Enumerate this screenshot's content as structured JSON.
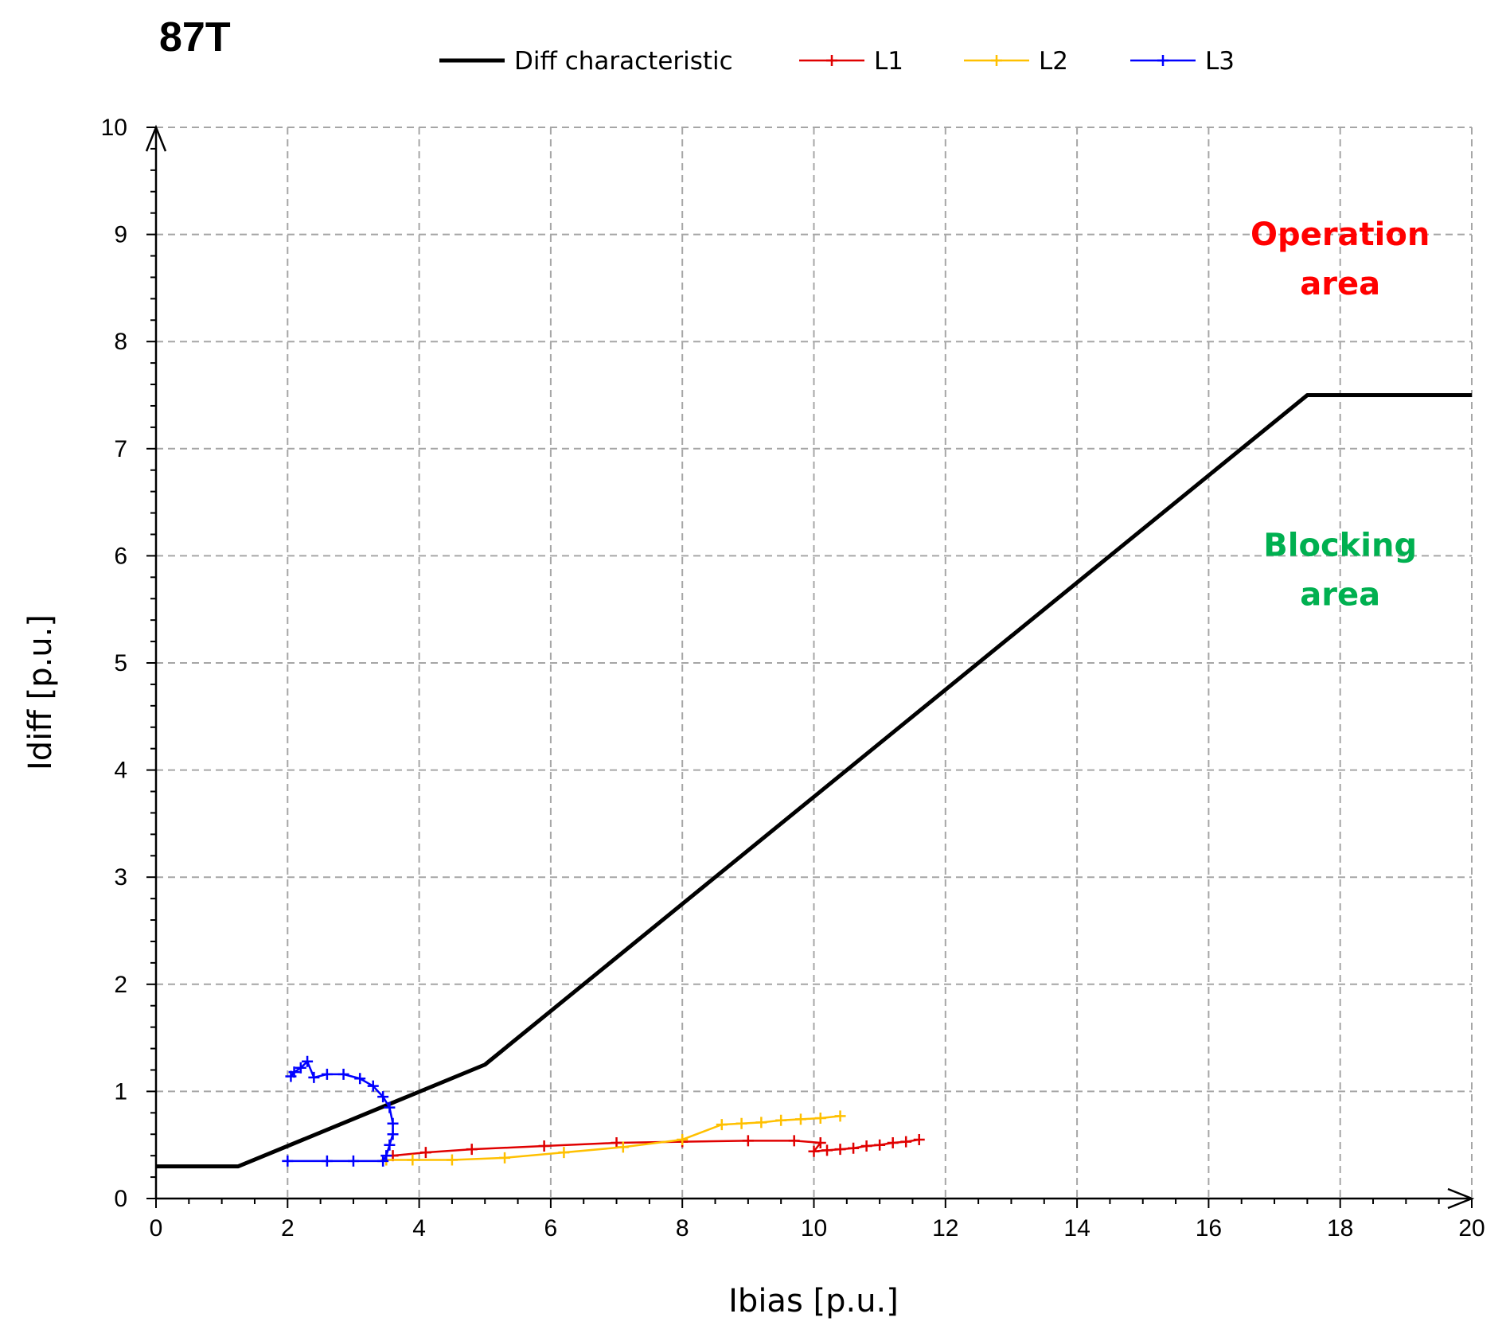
{
  "chart_data": {
    "type": "line",
    "title": "87T",
    "xlabel": "Ibias [p.u.]",
    "ylabel": "Idiff [p.u.]",
    "xlim": [
      0,
      20
    ],
    "ylim": [
      0,
      10
    ],
    "xticks": [
      0,
      2,
      4,
      6,
      8,
      10,
      12,
      14,
      16,
      18,
      20
    ],
    "yticks": [
      0,
      1,
      2,
      3,
      4,
      5,
      6,
      7,
      8,
      9,
      10
    ],
    "grid": true,
    "legend_position": "top",
    "series": [
      {
        "name": "Diff characteristic",
        "color": "#000000",
        "markers": false,
        "x": [
          0,
          1.25,
          5,
          17.5,
          20
        ],
        "y": [
          0.3,
          0.3,
          1.25,
          7.5,
          7.5
        ]
      },
      {
        "name": "L1",
        "color": "#e00000",
        "markers": true,
        "x": [
          3.6,
          4.1,
          4.8,
          5.9,
          7.0,
          8.0,
          9.0,
          9.7,
          10.1,
          10.0,
          10.2,
          10.4,
          10.6,
          10.8,
          11.0,
          11.2,
          11.4,
          11.6
        ],
        "y": [
          0.4,
          0.43,
          0.46,
          0.49,
          0.52,
          0.53,
          0.54,
          0.54,
          0.52,
          0.44,
          0.45,
          0.46,
          0.47,
          0.49,
          0.5,
          0.52,
          0.53,
          0.55
        ]
      },
      {
        "name": "L2",
        "color": "#ffc000",
        "markers": true,
        "x": [
          3.5,
          3.9,
          4.5,
          5.3,
          6.2,
          7.1,
          8.0,
          8.6,
          8.9,
          9.2,
          9.5,
          9.8,
          10.1,
          10.4
        ],
        "y": [
          0.36,
          0.36,
          0.36,
          0.38,
          0.43,
          0.48,
          0.55,
          0.69,
          0.7,
          0.71,
          0.73,
          0.74,
          0.75,
          0.77
        ]
      },
      {
        "name": "L3",
        "color": "#0000ff",
        "markers": true,
        "x": [
          2.0,
          2.6,
          3.0,
          3.45,
          3.5,
          3.55,
          3.6,
          3.6,
          3.55,
          3.45,
          3.3,
          3.1,
          2.85,
          2.6,
          2.4,
          2.3,
          2.2,
          2.1,
          2.05
        ],
        "y": [
          0.35,
          0.35,
          0.35,
          0.35,
          0.4,
          0.5,
          0.6,
          0.7,
          0.85,
          0.95,
          1.05,
          1.12,
          1.16,
          1.16,
          1.13,
          1.28,
          1.22,
          1.18,
          1.14
        ]
      }
    ],
    "annotations": [
      {
        "text": "Operation area",
        "lines": [
          "Operation",
          "area"
        ],
        "color": "#ff0000",
        "x": 18,
        "y": 8.9
      },
      {
        "text": "Blocking area",
        "lines": [
          "Blocking",
          "area"
        ],
        "color": "#00b050",
        "x": 18,
        "y": 6.0
      }
    ]
  }
}
